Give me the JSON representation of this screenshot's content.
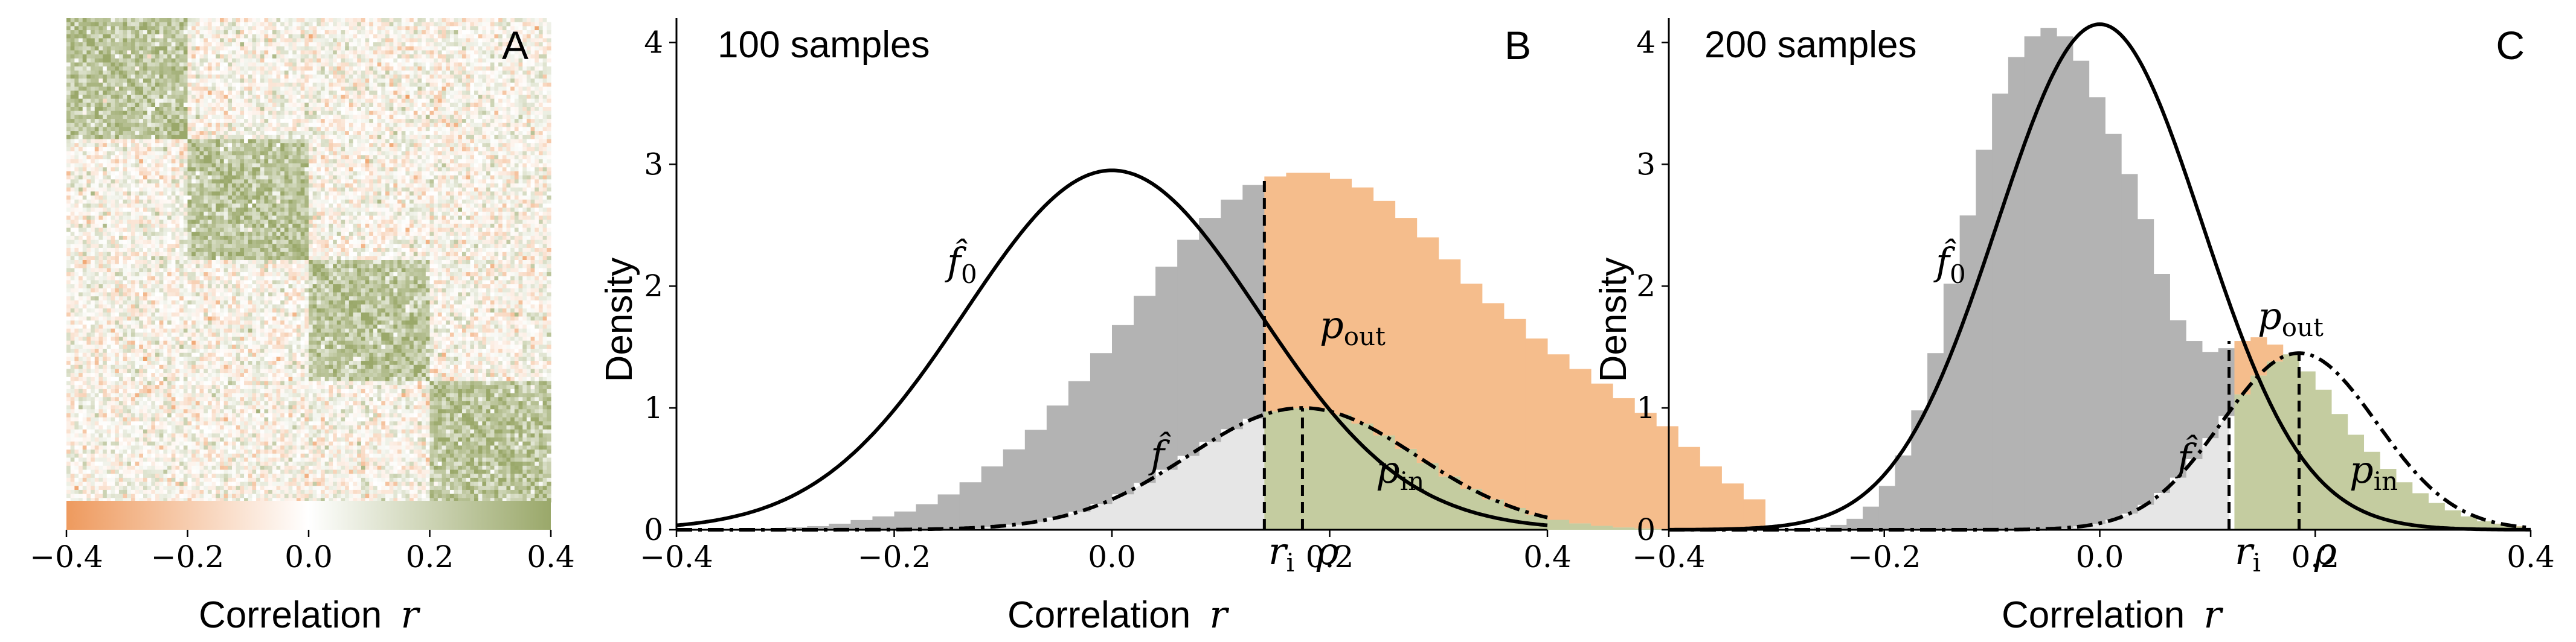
{
  "chart_data": [
    {
      "panel": "A",
      "type": "heatmap",
      "panel_letter": "A",
      "xlabel": "Correlation",
      "xlabel_var": "r",
      "colorbar": {
        "ticks": [
          "−0.4",
          "−0.2",
          "0.0",
          "0.2",
          "0.4"
        ],
        "range": [
          -0.4,
          0.4
        ],
        "colors": {
          "negative": "#ee9a5e",
          "zero": "#ffffff",
          "positive": "#9aa86a"
        }
      },
      "matrix": {
        "n": 120,
        "blocks": [
          [
            0,
            30
          ],
          [
            30,
            60
          ],
          [
            60,
            90
          ],
          [
            90,
            120
          ]
        ],
        "in_block_mean": 0.25,
        "noise_sd": 0.1,
        "diagonal": 0.4,
        "blocks_of_value": "positive"
      }
    },
    {
      "panel": "B",
      "type": "bar",
      "panel_letter": "B",
      "annotation": "100 samples",
      "xlabel": "Correlation",
      "xlabel_var": "r",
      "ylabel": "Density",
      "xlim": [
        -0.4,
        0.4
      ],
      "ylim": [
        0,
        4.2
      ],
      "xticks": [
        "−0.4",
        "−0.2",
        "0.0",
        "0.2",
        "0.4"
      ],
      "yticks": [
        "0",
        "1",
        "2",
        "3",
        "4"
      ],
      "bin_width": 0.02,
      "bin_start": -0.4,
      "hist_values": [
        0.0,
        0.0,
        0.0,
        0.01,
        0.01,
        0.02,
        0.03,
        0.05,
        0.08,
        0.11,
        0.15,
        0.21,
        0.29,
        0.39,
        0.52,
        0.66,
        0.82,
        1.02,
        1.22,
        1.45,
        1.68,
        1.92,
        2.16,
        2.38,
        2.56,
        2.71,
        2.83,
        2.9,
        2.93,
        2.93,
        2.88,
        2.81,
        2.7,
        2.56,
        2.4,
        2.22,
        2.02,
        1.86,
        1.73,
        1.57,
        1.44,
        1.32,
        1.2,
        1.08,
        0.96,
        0.85,
        0.68,
        0.52,
        0.38,
        0.25
      ],
      "r_i": 0.14,
      "rho": 0.175,
      "f0": {
        "mean": 0.0,
        "sd": 0.135,
        "peak": 2.95
      },
      "f": {
        "mean": 0.175,
        "sd": 0.105,
        "peak": 1.0
      },
      "annotations": {
        "f0_label": "f̂",
        "f0_sub": "0",
        "f_label": "f̂",
        "pout_label": "p",
        "pout_sub": "out",
        "pin_label": "p",
        "pin_sub": "in",
        "ri_label": "r",
        "ri_sub": "i",
        "rho_label": "ρ"
      },
      "colors": {
        "null": "#b3b3b3",
        "f_shade": "#e6e6e6",
        "pout": "#f5bd8c",
        "pin": "#c4cca0"
      }
    },
    {
      "panel": "C",
      "type": "bar",
      "panel_letter": "C",
      "annotation": "200 samples",
      "xlabel": "Correlation",
      "xlabel_var": "r",
      "ylabel": "Density",
      "xlim": [
        -0.4,
        0.4
      ],
      "ylim": [
        0,
        4.2
      ],
      "xticks": [
        "−0.4",
        "−0.2",
        "0.0",
        "0.2",
        "0.4"
      ],
      "yticks": [
        "0",
        "1",
        "2",
        "3",
        "4"
      ],
      "bin_width": 0.015,
      "bin_start": -0.4,
      "hist_values": [
        0,
        0,
        0,
        0,
        0,
        0,
        0,
        0,
        0.01,
        0.02,
        0.04,
        0.09,
        0.19,
        0.36,
        0.61,
        0.98,
        1.45,
        2.02,
        2.58,
        3.12,
        3.58,
        3.88,
        4.05,
        4.12,
        4.05,
        3.85,
        3.55,
        3.25,
        2.92,
        2.55,
        2.1,
        1.72,
        1.55,
        1.46,
        1.49,
        1.55,
        1.58,
        1.52,
        1.44,
        1.3,
        1.15,
        0.95,
        0.78,
        0.64,
        0.5,
        0.39,
        0.3,
        0.22,
        0.16,
        0.11,
        0.07,
        0.05,
        0.03
      ],
      "r_i": 0.12,
      "rho": 0.185,
      "f0": {
        "mean": 0.0,
        "sd": 0.095,
        "peak": 4.15
      },
      "f": {
        "mean": 0.185,
        "sd": 0.072,
        "peak": 1.45
      },
      "annotations": {
        "f0_label": "f̂",
        "f0_sub": "0",
        "f_label": "f̂",
        "pout_label": "p",
        "pout_sub": "out",
        "pin_label": "p",
        "pin_sub": "in",
        "ri_label": "r",
        "ri_sub": "i",
        "rho_label": "ρ"
      },
      "colors": {
        "null": "#b3b3b3",
        "f_shade": "#e6e6e6",
        "pout": "#f5bd8c",
        "pin": "#c4cca0"
      }
    }
  ]
}
